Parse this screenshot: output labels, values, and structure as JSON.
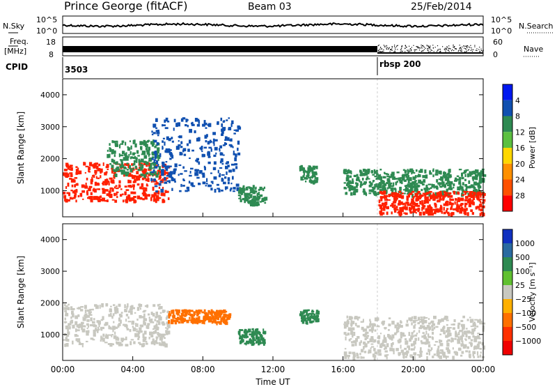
{
  "header": {
    "station": "Prince George (fitACF)",
    "beam": "Beam 03",
    "date": "25/Feb/2014"
  },
  "sky_panel": {
    "left_label": "N.Sky",
    "right_label": "N.Search",
    "left_ticks": [
      "10^5",
      "10^0"
    ],
    "right_ticks": [
      "10^5",
      "10^0"
    ]
  },
  "freq_panel": {
    "left_label_top": "Freq.",
    "left_label_bottom": "[MHz]",
    "right_label": "Nave",
    "left_ticks": [
      "18",
      "8"
    ],
    "right_ticks": [
      "60",
      "0"
    ]
  },
  "cpid": {
    "label": "CPID",
    "segments": [
      {
        "start_hour": 0,
        "name": "3503"
      },
      {
        "start_hour": 18,
        "name": "rbsp 200"
      }
    ]
  },
  "x_axis": {
    "label": "Time UT",
    "ticks": [
      "00:00",
      "04:00",
      "08:00",
      "12:00",
      "16:00",
      "20:00",
      "00:00"
    ],
    "range_hours": [
      0,
      24
    ]
  },
  "chart_data": [
    {
      "type": "heatmap",
      "name": "power",
      "xlabel": "Time UT",
      "ylabel": "Slant Range [km]",
      "xlim_hours": [
        0,
        24
      ],
      "ylim_km": [
        180,
        4500
      ],
      "yticks": [
        "1000",
        "2000",
        "3000",
        "4000"
      ],
      "colorbar": {
        "label": "Power [dB]",
        "ticks": [
          "4",
          "8",
          "12",
          "16",
          "20",
          "24",
          "28"
        ],
        "colors": [
          "#0018f0",
          "#1050b0",
          "#2e8a52",
          "#5cc040",
          "#ffd700",
          "#ff9000",
          "#ff5000",
          "#ff0000"
        ]
      },
      "echo_regions": [
        {
          "t0": 0.0,
          "t1": 6.0,
          "r0": 700,
          "r1": 1900,
          "level": "high"
        },
        {
          "t0": 2.5,
          "t1": 5.5,
          "r0": 1500,
          "r1": 2600,
          "level": "mid"
        },
        {
          "t0": 5.0,
          "t1": 10.0,
          "r0": 1000,
          "r1": 3300,
          "level": "low"
        },
        {
          "t0": 10.0,
          "t1": 11.5,
          "r0": 600,
          "r1": 1200,
          "level": "mid"
        },
        {
          "t0": 13.5,
          "t1": 14.5,
          "r0": 1300,
          "r1": 1800,
          "level": "mid"
        },
        {
          "t0": 16.0,
          "t1": 24.0,
          "r0": 900,
          "r1": 1700,
          "level": "mid"
        },
        {
          "t0": 18.0,
          "t1": 24.0,
          "r0": 300,
          "r1": 1000,
          "level": "high"
        }
      ]
    },
    {
      "type": "heatmap",
      "name": "velocity",
      "xlabel": "Time UT",
      "ylabel": "Slant Range [km]",
      "xlim_hours": [
        0,
        24
      ],
      "ylim_km": [
        180,
        4500
      ],
      "yticks": [
        "1000",
        "2000",
        "3000",
        "4000"
      ],
      "colorbar": {
        "label": "Velocity [m s⁻¹]",
        "ticks": [
          "1000",
          "500",
          "100",
          "25",
          "−25",
          "−100",
          "−500",
          "−1000"
        ],
        "colors": [
          "#1030c0",
          "#2a6aa0",
          "#2e8a52",
          "#60c030",
          "#c8c8c0",
          "#ffb000",
          "#ff7000",
          "#ff3000",
          "#f00000"
        ]
      },
      "echo_regions": [
        {
          "t0": 0.0,
          "t1": 6.0,
          "r0": 700,
          "r1": 2000,
          "level": "ground"
        },
        {
          "t0": 6.0,
          "t1": 9.5,
          "r0": 1400,
          "r1": 1800,
          "level": "neg"
        },
        {
          "t0": 10.0,
          "t1": 11.5,
          "r0": 700,
          "r1": 1200,
          "level": "pos"
        },
        {
          "t0": 13.5,
          "t1": 14.5,
          "r0": 1400,
          "r1": 1800,
          "level": "pos"
        },
        {
          "t0": 16.0,
          "t1": 24.0,
          "r0": 300,
          "r1": 1600,
          "level": "ground"
        }
      ]
    }
  ]
}
